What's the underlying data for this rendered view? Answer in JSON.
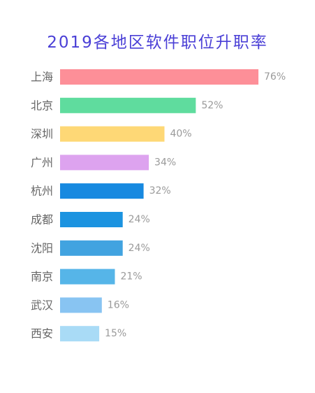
{
  "chart_data": {
    "type": "bar",
    "orientation": "horizontal",
    "title": "2019各地区软件职位升职率",
    "categories": [
      "上海",
      "北京",
      "深圳",
      "广州",
      "杭州",
      "成都",
      "沈阳",
      "南京",
      "武汉",
      "西安"
    ],
    "values": [
      76,
      52,
      40,
      34,
      32,
      24,
      24,
      21,
      16,
      15
    ],
    "value_labels": [
      "76%",
      "52%",
      "40%",
      "34%",
      "32%",
      "24%",
      "24%",
      "21%",
      "16%",
      "15%"
    ],
    "colors": [
      "#fd8f98",
      "#5fdc9e",
      "#fed876",
      "#dda3ef",
      "#1789e0",
      "#1b93e0",
      "#41a3e0",
      "#56b5e8",
      "#88c4f2",
      "#a9dbf6"
    ],
    "title_color": "#4a3fd6",
    "xlim": [
      0,
      76
    ],
    "grid": false,
    "legend": "none"
  }
}
